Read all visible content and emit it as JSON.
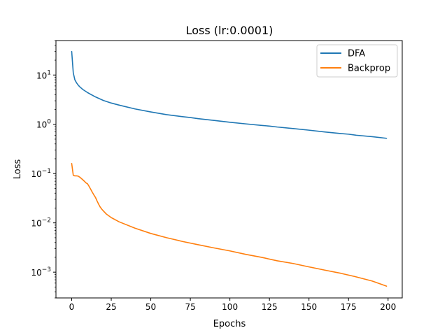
{
  "chart_data": {
    "type": "line",
    "title": "Loss (lr:0.0001)",
    "xlabel": "Epochs",
    "ylabel": "Loss",
    "xlim": [
      -9.95,
      208.95
    ],
    "ylim": [
      0.0003,
      50
    ],
    "yscale": "log",
    "x_ticks": [
      0,
      25,
      50,
      75,
      100,
      125,
      150,
      175,
      200
    ],
    "x_tick_labels": [
      "0",
      "25",
      "50",
      "75",
      "100",
      "125",
      "150",
      "175",
      "200"
    ],
    "y_ticks": [
      0.001,
      0.01,
      0.1,
      1,
      10
    ],
    "y_tick_labels": [
      {
        "base": "10",
        "exp": "−3"
      },
      {
        "base": "10",
        "exp": "−2"
      },
      {
        "base": "10",
        "exp": "−1"
      },
      {
        "base": "10",
        "exp": "0"
      },
      {
        "base": "10",
        "exp": "1"
      }
    ],
    "grid": false,
    "legend": "top-right",
    "series": [
      {
        "name": "DFA",
        "color": "#1f77b4",
        "points": [
          [
            0,
            30
          ],
          [
            1,
            11
          ],
          [
            2,
            8
          ],
          [
            3,
            7
          ],
          [
            4,
            6.3
          ],
          [
            5,
            5.8
          ],
          [
            7,
            5.1
          ],
          [
            10,
            4.4
          ],
          [
            15,
            3.6
          ],
          [
            20,
            3.05
          ],
          [
            25,
            2.7
          ],
          [
            30,
            2.45
          ],
          [
            40,
            2.05
          ],
          [
            50,
            1.78
          ],
          [
            60,
            1.57
          ],
          [
            70,
            1.43
          ],
          [
            75,
            1.37
          ],
          [
            80,
            1.3
          ],
          [
            90,
            1.2
          ],
          [
            100,
            1.1
          ],
          [
            110,
            1.02
          ],
          [
            120,
            0.95
          ],
          [
            125,
            0.92
          ],
          [
            130,
            0.88
          ],
          [
            140,
            0.82
          ],
          [
            150,
            0.76
          ],
          [
            160,
            0.7
          ],
          [
            170,
            0.65
          ],
          [
            175,
            0.63
          ],
          [
            180,
            0.6
          ],
          [
            190,
            0.56
          ],
          [
            199,
            0.52
          ]
        ]
      },
      {
        "name": "Backprop",
        "color": "#ff7f0e",
        "points": [
          [
            0,
            0.16
          ],
          [
            1,
            0.092
          ],
          [
            2,
            0.09
          ],
          [
            3,
            0.09
          ],
          [
            4,
            0.089
          ],
          [
            5,
            0.085
          ],
          [
            6,
            0.08
          ],
          [
            7,
            0.075
          ],
          [
            8,
            0.07
          ],
          [
            9,
            0.065
          ],
          [
            10,
            0.062
          ],
          [
            11,
            0.055
          ],
          [
            12,
            0.048
          ],
          [
            13,
            0.042
          ],
          [
            14,
            0.037
          ],
          [
            15,
            0.033
          ],
          [
            16,
            0.028
          ],
          [
            17,
            0.024
          ],
          [
            18,
            0.021
          ],
          [
            19,
            0.019
          ],
          [
            20,
            0.0175
          ],
          [
            22,
            0.015
          ],
          [
            25,
            0.0128
          ],
          [
            30,
            0.0105
          ],
          [
            40,
            0.0078
          ],
          [
            50,
            0.0061
          ],
          [
            60,
            0.005
          ],
          [
            70,
            0.0042
          ],
          [
            80,
            0.0036
          ],
          [
            90,
            0.0031
          ],
          [
            100,
            0.0027
          ],
          [
            110,
            0.0023
          ],
          [
            120,
            0.002
          ],
          [
            130,
            0.0017
          ],
          [
            140,
            0.0015
          ],
          [
            150,
            0.00128
          ],
          [
            160,
            0.0011
          ],
          [
            170,
            0.00095
          ],
          [
            180,
            0.0008
          ],
          [
            190,
            0.00066
          ],
          [
            199,
            0.00052
          ]
        ]
      }
    ]
  }
}
